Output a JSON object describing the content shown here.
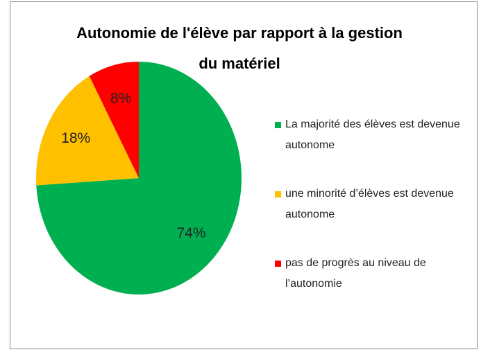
{
  "chart_data": {
    "type": "pie",
    "title": "Autonomie de l'élève par rapport à la gestion du matériel",
    "categories": [
      "La majorité des élèves est devenue autonome",
      "une minorité d’élèves est devenue autonome",
      "pas de progrès au niveau de l’autonomie"
    ],
    "values": [
      74,
      18,
      8
    ],
    "value_labels": [
      "74%",
      "18%",
      "8%"
    ],
    "colors": [
      "#00b050",
      "#ffc000",
      "#ff0000"
    ],
    "legend": "right"
  }
}
